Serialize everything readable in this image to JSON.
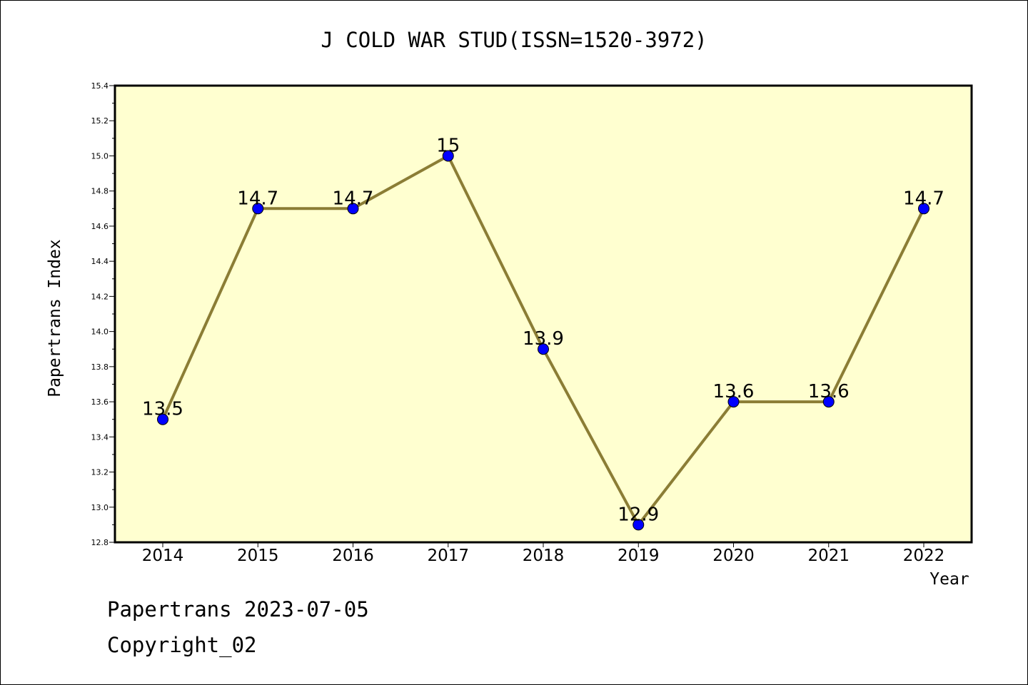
{
  "chart_data": {
    "type": "line",
    "title": "J COLD WAR STUD(ISSN=1520-3972)",
    "xlabel": "Year",
    "ylabel": "Papertrans Index",
    "categories": [
      "2014",
      "2015",
      "2016",
      "2017",
      "2018",
      "2019",
      "2020",
      "2021",
      "2022"
    ],
    "values": [
      13.5,
      14.7,
      14.7,
      15,
      13.9,
      12.9,
      13.6,
      13.6,
      14.7
    ],
    "data_labels": [
      "13.5",
      "14.7",
      "14.7",
      "15",
      "13.9",
      "12.9",
      "13.6",
      "13.6",
      "14.7"
    ],
    "ylim": [
      12.8,
      15.4
    ],
    "yticks": [
      "12.8",
      "13.0",
      "13.2",
      "13.4",
      "13.6",
      "13.8",
      "14.0",
      "14.2",
      "14.4",
      "14.6",
      "14.8",
      "15.0",
      "15.2",
      "15.4"
    ],
    "grid": false,
    "legend": "none",
    "colors": {
      "plot_background": "#ffffd0",
      "line": "#8b7d35",
      "marker": "#0000ff"
    }
  },
  "footer": {
    "line1": "Papertrans 2023-07-05",
    "line2": "Copyright_02"
  }
}
